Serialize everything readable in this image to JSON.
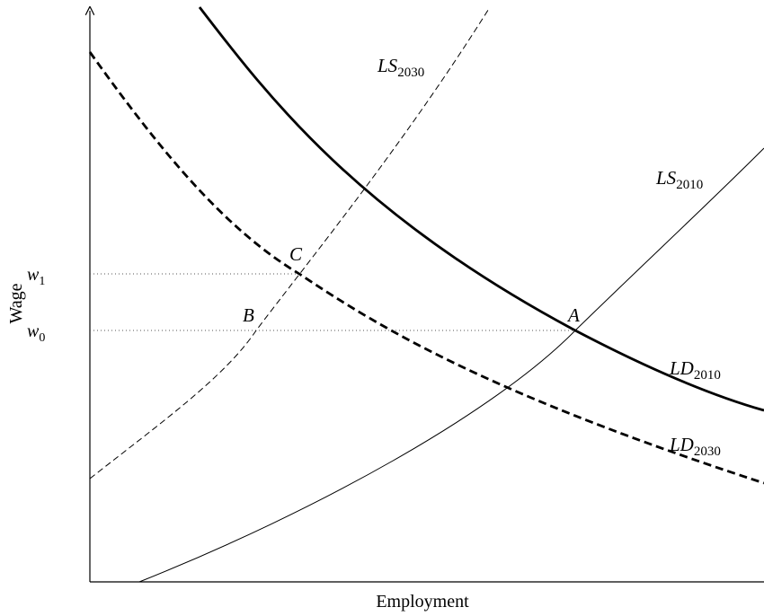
{
  "axes": {
    "x_label": "Employment",
    "y_label": "Wage"
  },
  "wage_levels": [
    {
      "symbol": "w",
      "sub": "1"
    },
    {
      "symbol": "w",
      "sub": "0"
    }
  ],
  "curves": [
    {
      "symbol": "LS",
      "sub": "2030"
    },
    {
      "symbol": "LS",
      "sub": "2010"
    },
    {
      "symbol": "LD",
      "sub": "2010"
    },
    {
      "symbol": "LD",
      "sub": "2030"
    }
  ],
  "points": [
    "A",
    "B",
    "C"
  ]
}
